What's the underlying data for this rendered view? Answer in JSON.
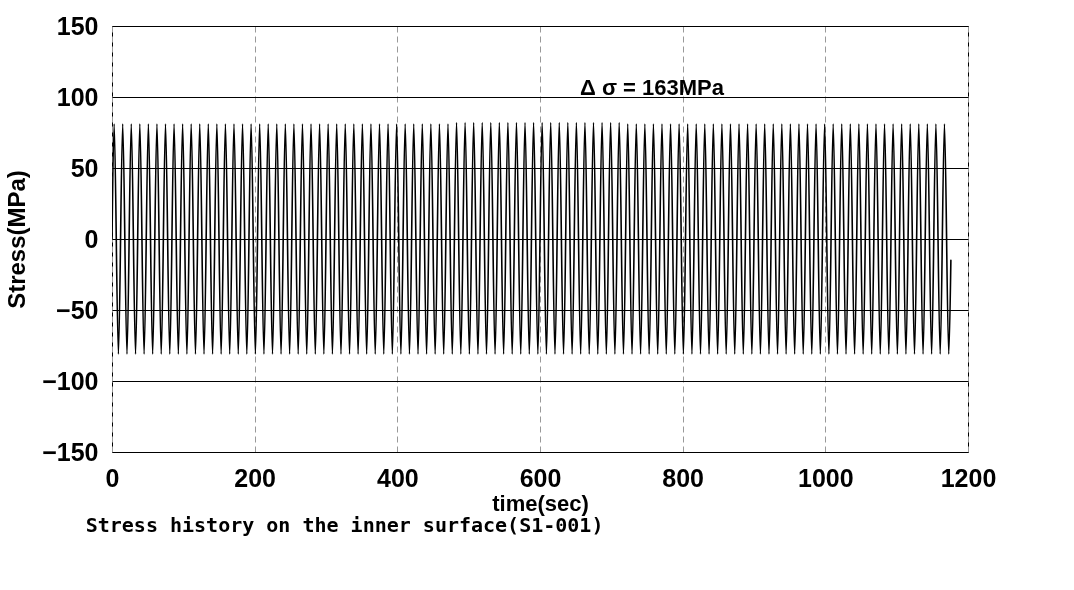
{
  "chart_data": {
    "type": "line",
    "title": "Stress history on the inner surface(S1-001)",
    "xlabel": "time(sec)",
    "ylabel": "Stress(MPa)",
    "annotations": [
      "Δ σ = 163MPa"
    ],
    "xlim": [
      0,
      1200
    ],
    "xticks": [
      0,
      200,
      400,
      600,
      800,
      1000,
      1200
    ],
    "ylim": [
      -150,
      150
    ],
    "yticks": [
      -150,
      -100,
      -50,
      0,
      50,
      100,
      150
    ],
    "grid": true,
    "line_style": "solid",
    "marker": "none",
    "x": [
      0,
      3,
      9,
      15,
      21,
      27,
      33,
      39,
      45,
      51,
      57,
      63,
      69,
      75,
      81,
      87,
      93,
      99,
      105,
      111,
      117,
      123,
      129,
      135,
      141,
      147,
      153,
      159,
      165,
      171,
      177,
      183,
      189,
      195,
      201,
      207,
      213,
      219,
      225,
      231,
      237,
      243,
      249,
      255,
      261,
      267,
      273,
      279,
      285,
      291,
      297,
      303,
      309,
      315,
      321,
      327,
      333,
      339,
      345,
      351,
      357,
      363,
      369,
      375,
      381,
      387,
      393,
      399,
      405,
      411,
      417,
      423,
      429,
      435,
      441,
      447,
      453,
      459,
      465,
      471,
      477,
      483,
      489,
      495,
      501,
      507,
      513,
      519,
      525,
      531,
      537,
      543,
      549,
      555,
      561,
      567,
      573,
      579,
      585,
      591,
      597,
      603,
      609,
      615,
      621,
      627,
      633,
      639,
      645,
      651,
      657,
      663,
      669,
      675,
      681,
      687,
      693,
      699,
      705,
      711,
      717,
      723,
      729,
      735,
      741,
      747,
      753,
      759,
      765,
      771,
      777,
      783,
      789,
      795,
      801,
      807,
      813,
      819,
      825,
      831,
      837,
      843,
      849,
      855,
      861,
      867,
      873,
      879,
      885,
      891,
      897,
      903,
      909,
      915,
      921,
      927,
      933,
      939,
      945,
      951,
      957,
      963,
      969,
      975,
      981,
      987,
      993,
      999,
      1005,
      1011,
      1017,
      1023,
      1029,
      1035,
      1041,
      1047,
      1053,
      1059,
      1065,
      1071,
      1077,
      1083,
      1089,
      1095,
      1101,
      1107,
      1113,
      1119,
      1125,
      1131,
      1137,
      1143,
      1149,
      1155,
      1161,
      1167,
      1173,
      1176
    ],
    "series": [
      {
        "color": "#000000",
        "values": [
          0,
          81,
          -81,
          81,
          -81,
          81,
          -81,
          81,
          -81,
          81,
          -81,
          81,
          -81,
          81,
          -81,
          81,
          -81,
          81,
          -81,
          81,
          -81,
          81,
          -81,
          81,
          -81,
          81,
          -81,
          81,
          -81,
          81,
          -81,
          81,
          -81,
          81,
          -81,
          81,
          -81,
          81,
          -81,
          81,
          -81,
          81,
          -81,
          81,
          -81,
          81,
          -81,
          81,
          -81,
          81,
          -81,
          81,
          -81,
          81,
          -81,
          81,
          -81,
          81,
          -81,
          81,
          -81,
          81,
          -81,
          81,
          -81,
          81,
          -81,
          81,
          -81,
          81,
          -81,
          81,
          -81,
          81,
          -81,
          81,
          -81,
          81,
          -81,
          81,
          -81,
          82,
          -81,
          82,
          -81,
          82,
          -81,
          82,
          -81,
          82,
          -81,
          82,
          -81,
          82,
          -81,
          82,
          -81,
          82,
          -81,
          82,
          -81,
          82,
          -81,
          82,
          -81,
          82,
          -81,
          82,
          -81,
          82,
          -81,
          82,
          -81,
          82,
          -81,
          82,
          -81,
          82,
          -81,
          82,
          -81,
          81,
          -81,
          81,
          -81,
          81,
          -81,
          81,
          -81,
          81,
          -81,
          81,
          -81,
          81,
          -81,
          81,
          -81,
          81,
          -81,
          81,
          -81,
          81,
          -81,
          81,
          -81,
          81,
          -81,
          81,
          -81,
          81,
          -81,
          81,
          -81,
          81,
          -81,
          81,
          -81,
          81,
          -81,
          81,
          -81,
          81,
          -81,
          81,
          -81,
          81,
          -81,
          81,
          -81,
          81,
          -81,
          81,
          -81,
          81,
          -81,
          81,
          -81,
          81,
          -81,
          81,
          -81,
          81,
          -81,
          81,
          -81,
          81,
          -81,
          81,
          -81,
          81,
          -81,
          81,
          -81,
          81,
          -81,
          81,
          -81,
          -15
        ]
      }
    ]
  }
}
